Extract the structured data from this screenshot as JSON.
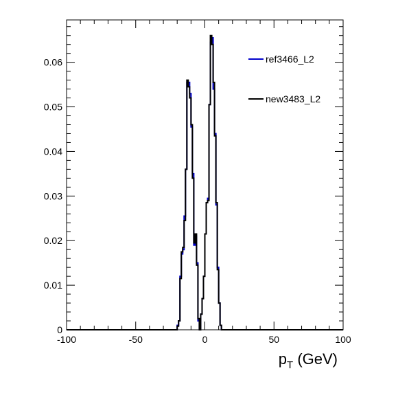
{
  "chart_data": {
    "type": "line",
    "xlabel_main": "p",
    "xlabel_sub": "T",
    "xlabel_unit": " (GeV)",
    "xlim": [
      -100,
      100
    ],
    "ylim": [
      0,
      0.0695
    ],
    "x_ticks": [
      -100,
      -50,
      0,
      50,
      100
    ],
    "x_tick_labels": [
      "-100",
      "-50",
      "0",
      "50",
      "100"
    ],
    "y_ticks": [
      0,
      0.01,
      0.02,
      0.03,
      0.04,
      0.05,
      0.06
    ],
    "y_tick_labels": [
      "0",
      "0.01",
      "0.02",
      "0.03",
      "0.04",
      "0.05",
      "0.06"
    ],
    "bin_edges_start": -100,
    "bin_width": 1,
    "series": [
      {
        "name": "ref3466_L2",
        "color": "#0000cc",
        "x": [
          -21,
          -20,
          -19,
          -18,
          -17,
          -16,
          -15,
          -14,
          -13,
          -12,
          -11,
          -10,
          -9,
          -8,
          -7,
          -6,
          -5,
          -4,
          -3,
          -2,
          -1,
          0,
          1,
          2,
          3,
          4,
          5,
          6,
          7,
          8,
          9,
          10,
          11,
          12,
          13,
          14,
          15,
          16,
          17,
          18,
          19,
          20
        ],
        "y": [
          0,
          0.001,
          0.002,
          0.012,
          0.017,
          0.018,
          0.0255,
          0.036,
          0.0555,
          0.0555,
          0.053,
          0.0455,
          0.035,
          0.019,
          0.021,
          0.015,
          0.002,
          0,
          0.0035,
          0.007,
          0.012,
          0.0215,
          0.0285,
          0.0295,
          0.0505,
          0.0645,
          0.0655,
          0.054,
          0.044,
          0.028,
          0.014,
          0.006,
          0.001,
          0,
          0,
          0,
          0,
          0,
          0,
          0,
          0,
          0
        ]
      },
      {
        "name": "new3483_L2",
        "color": "#000000",
        "x": [
          -21,
          -20,
          -19,
          -18,
          -17,
          -16,
          -15,
          -14,
          -13,
          -12,
          -11,
          -10,
          -9,
          -8,
          -7,
          -6,
          -5,
          -4,
          -3,
          -2,
          -1,
          0,
          1,
          2,
          3,
          4,
          5,
          6,
          7,
          8,
          9,
          10,
          11,
          12,
          13,
          14,
          15,
          16,
          17,
          18,
          19,
          20
        ],
        "y": [
          0,
          0.0008,
          0.002,
          0.0115,
          0.0175,
          0.0185,
          0.0245,
          0.036,
          0.056,
          0.0545,
          0.052,
          0.046,
          0.034,
          0.0195,
          0.0215,
          0.0145,
          0.0025,
          0,
          0.0035,
          0.007,
          0.012,
          0.0215,
          0.0285,
          0.029,
          0.0505,
          0.066,
          0.064,
          0.0555,
          0.0435,
          0.0285,
          0.0135,
          0.006,
          0.001,
          0,
          0,
          0,
          0,
          0,
          0,
          0,
          0,
          0
        ]
      }
    ],
    "legend_placement": "top-right",
    "grid": false
  }
}
